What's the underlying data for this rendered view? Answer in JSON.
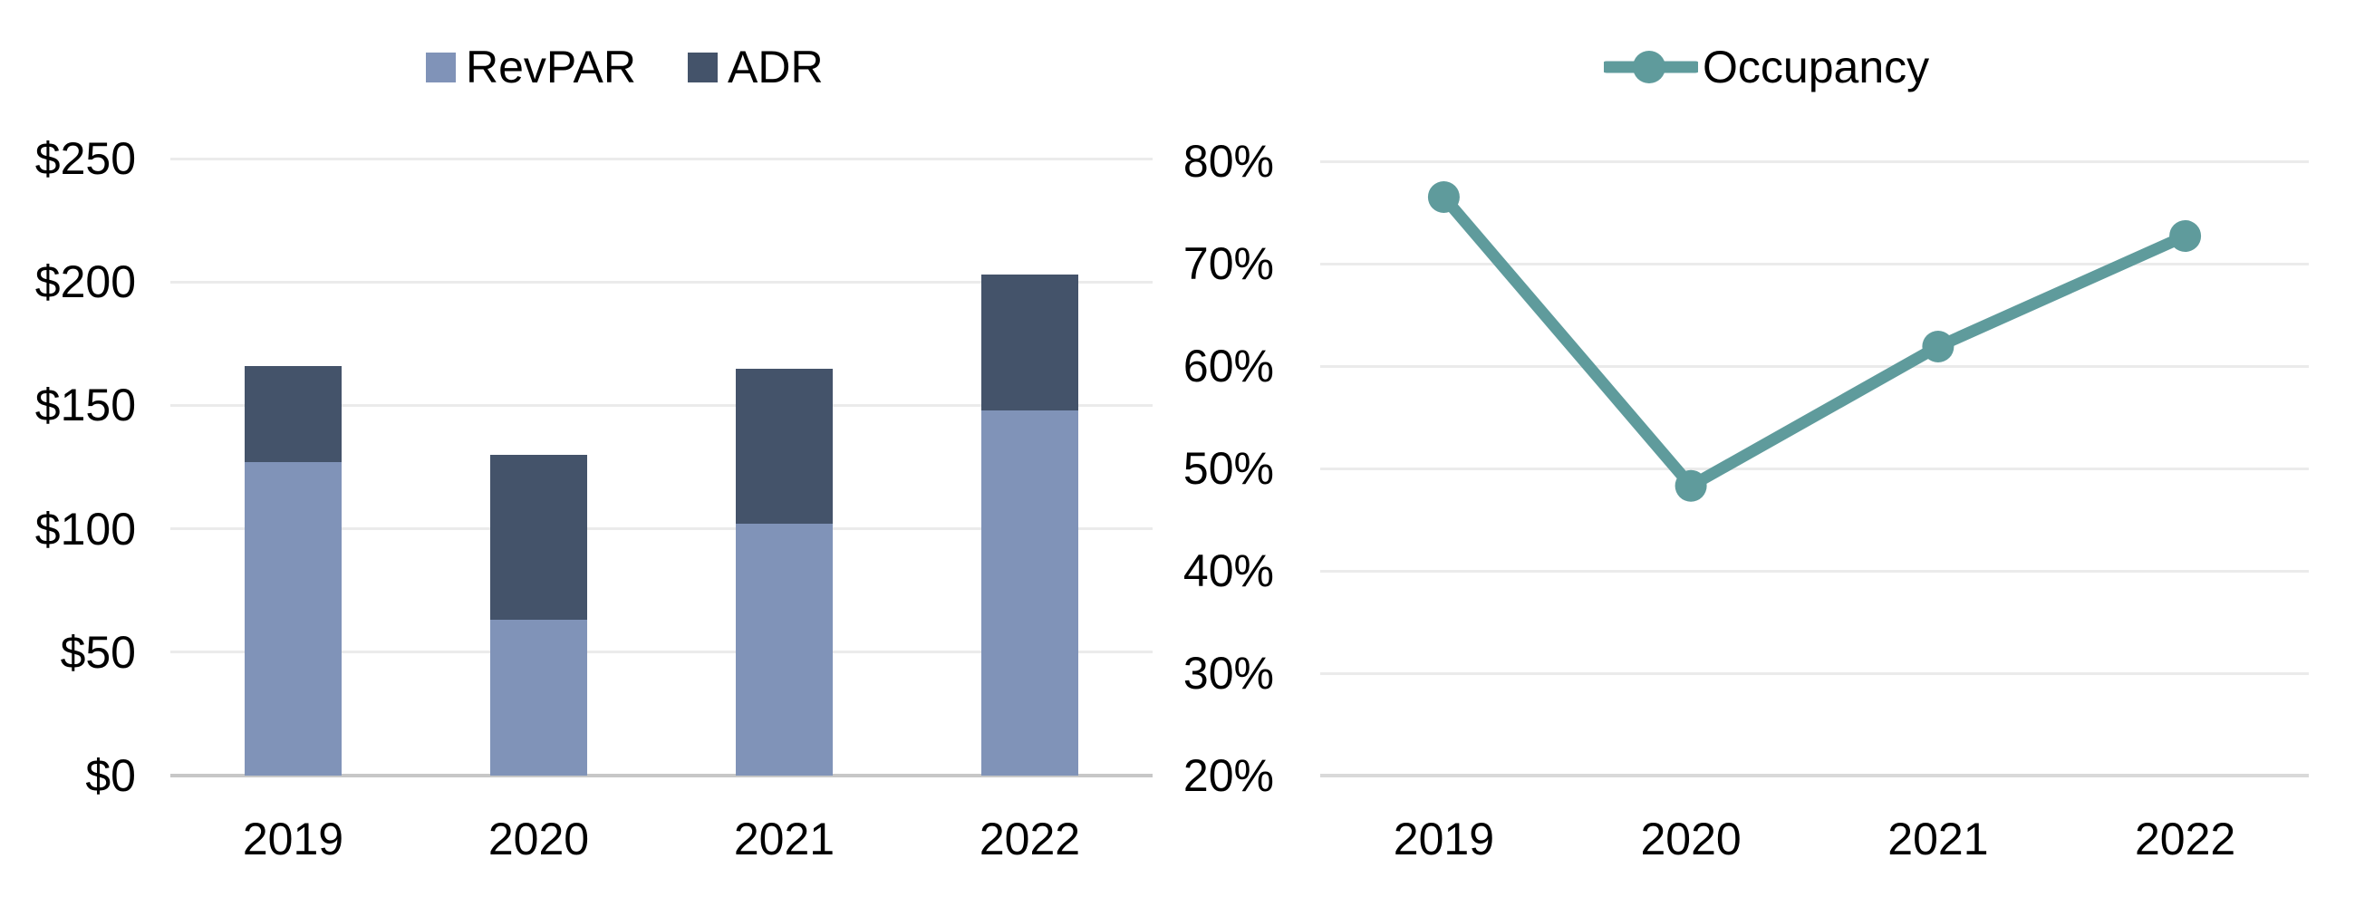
{
  "chart_data": [
    {
      "type": "bar",
      "subtype": "overlapped-stacked-look",
      "title": "",
      "categories": [
        "2019",
        "2020",
        "2021",
        "2022"
      ],
      "series": [
        {
          "name": "RevPAR",
          "values": [
            127,
            63,
            102,
            148
          ],
          "color": "#8093B8"
        },
        {
          "name": "ADR",
          "values": [
            166,
            130,
            165,
            203
          ],
          "color": "#44536A"
        }
      ],
      "xlabel": "",
      "ylabel": "",
      "ylim": [
        0,
        250
      ],
      "y_ticks": [
        {
          "value": 250,
          "label": "$250"
        },
        {
          "value": 200,
          "label": "$200"
        },
        {
          "value": 150,
          "label": "$150"
        },
        {
          "value": 100,
          "label": "$100"
        },
        {
          "value": 50,
          "label": "$50"
        },
        {
          "value": 0,
          "label": "$0"
        }
      ],
      "grid": true,
      "legend_position": "top"
    },
    {
      "type": "line",
      "title": "",
      "categories": [
        "2019",
        "2020",
        "2021",
        "2022"
      ],
      "series": [
        {
          "name": "Occupancy",
          "values": [
            76.5,
            48.3,
            61.9,
            72.7
          ],
          "color": "#5F9B9C"
        }
      ],
      "xlabel": "",
      "ylabel": "",
      "ylim": [
        20,
        80
      ],
      "y_ticks": [
        {
          "value": 80,
          "label": "80%"
        },
        {
          "value": 70,
          "label": "70%"
        },
        {
          "value": 60,
          "label": "60%"
        },
        {
          "value": 50,
          "label": "50%"
        },
        {
          "value": 40,
          "label": "40%"
        },
        {
          "value": 30,
          "label": "30%"
        },
        {
          "value": 20,
          "label": "20%"
        }
      ],
      "grid": true,
      "legend_position": "top",
      "marker": "circle"
    }
  ],
  "colors": {
    "gridline": "#EBEBEB",
    "axis_left": "#C7C7C7",
    "axis_right": "#D9D9D9",
    "text": "#000000",
    "background": "#FFFFFF"
  }
}
